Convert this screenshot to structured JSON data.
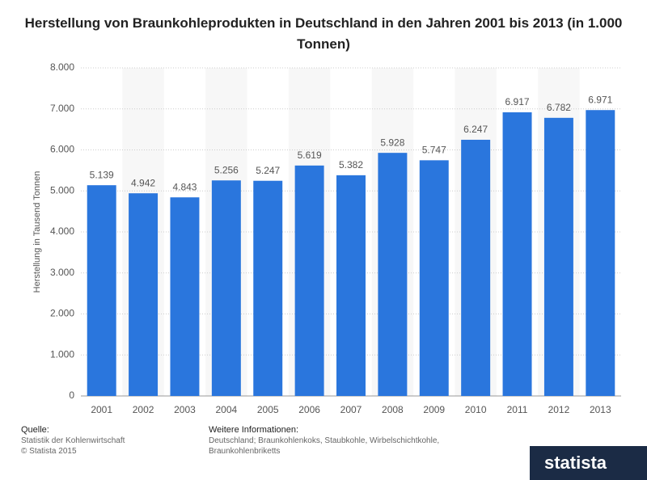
{
  "chart_data": {
    "type": "bar",
    "title": "Herstellung von Braunkohleprodukten in Deutschland in den Jahren 2001 bis 2013 (in 1.000 Tonnen)",
    "y_label": "Herstellung in Tausend Tonnen",
    "categories": [
      "2001",
      "2002",
      "2003",
      "2004",
      "2005",
      "2006",
      "2007",
      "2008",
      "2009",
      "2010",
      "2011",
      "2012",
      "2013"
    ],
    "values": [
      5139,
      4942,
      4843,
      5256,
      5247,
      5619,
      5382,
      5928,
      5747,
      6247,
      6917,
      6782,
      6971
    ],
    "value_labels": [
      "5.139",
      "4.942",
      "4.843",
      "5.256",
      "5.247",
      "5.619",
      "5.382",
      "5.928",
      "5.747",
      "6.247",
      "6.917",
      "6.782",
      "6.971"
    ],
    "color": "#2a76dd",
    "ylim": [
      0,
      8000
    ],
    "yticks": [
      0,
      {
        "value": 1000,
        "label": "1.000"
      },
      {
        "value": 2000,
        "label": "2.000"
      },
      {
        "value": 3000,
        "label": "3.000"
      },
      {
        "value": 4000,
        "label": "4.000"
      },
      {
        "value": 5000,
        "label": "5.000"
      },
      {
        "value": 6000,
        "label": "6.000"
      },
      {
        "value": 7000,
        "label": "7.000"
      },
      {
        "value": 8000,
        "label": "8.000"
      }
    ],
    "grid": true
  },
  "footer": {
    "source_label": "Quelle:",
    "source_lines": [
      "Statistik der Kohlenwirtschaft",
      "© Statista 2015"
    ],
    "info_label": "Weitere Informationen:",
    "info_text": "Deutschland; Braunkohlenkoks, Staubkohle, Wirbelschichtkohle, Braunkohlenbriketts",
    "logo": "statista"
  }
}
